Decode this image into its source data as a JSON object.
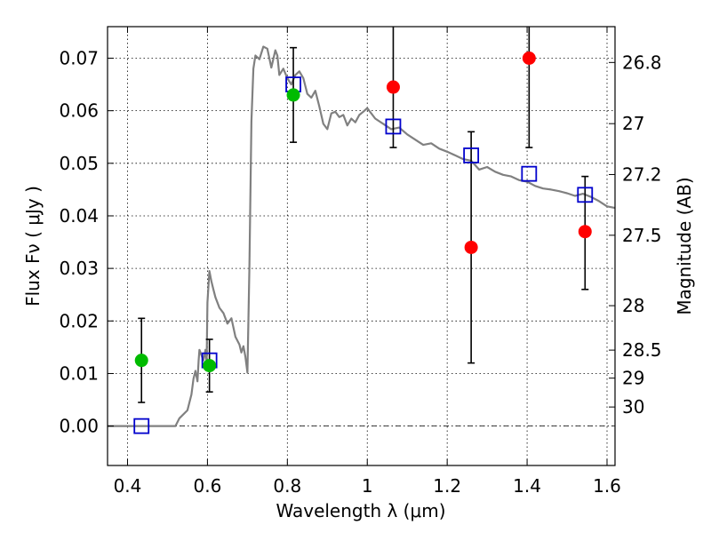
{
  "chart_data": {
    "type": "scatter",
    "xlabel": "Wavelength  λ (μm)",
    "ylabel": "Flux  Fν  ( μJy )",
    "ylabel_right": "Magnitude (AB)",
    "xlim": [
      0.35,
      1.62
    ],
    "ylim": [
      -0.0075,
      0.076
    ],
    "grid": true,
    "x_ticks": [
      {
        "value": 0.4,
        "label": "0.4"
      },
      {
        "value": 0.6,
        "label": "0.6"
      },
      {
        "value": 0.8,
        "label": "0.8"
      },
      {
        "value": 1.0,
        "label": "1"
      },
      {
        "value": 1.2,
        "label": "1.2"
      },
      {
        "value": 1.4,
        "label": "1.4"
      },
      {
        "value": 1.6,
        "label": "1.6"
      }
    ],
    "y_ticks": [
      {
        "value": 0.0,
        "label": "0.00"
      },
      {
        "value": 0.01,
        "label": "0.01"
      },
      {
        "value": 0.02,
        "label": "0.02"
      },
      {
        "value": 0.03,
        "label": "0.03"
      },
      {
        "value": 0.04,
        "label": "0.04"
      },
      {
        "value": 0.05,
        "label": "0.05"
      },
      {
        "value": 0.06,
        "label": "0.06"
      },
      {
        "value": 0.07,
        "label": "0.07"
      }
    ],
    "right_ticks": [
      {
        "mag": 26.8,
        "label": "26.8"
      },
      {
        "mag": 27.0,
        "label": "27"
      },
      {
        "mag": 27.2,
        "label": "27.2"
      },
      {
        "mag": 27.5,
        "label": "27.5"
      },
      {
        "mag": 28.0,
        "label": "28"
      },
      {
        "mag": 28.5,
        "label": "28.5"
      },
      {
        "mag": 29.0,
        "label": "29"
      },
      {
        "mag": 30.0,
        "label": "30"
      }
    ],
    "model_spectrum": {
      "color": "#808080",
      "x": [
        0.35,
        0.52,
        0.53,
        0.55,
        0.56,
        0.565,
        0.57,
        0.575,
        0.578,
        0.58,
        0.585,
        0.59,
        0.595,
        0.598,
        0.6,
        0.605,
        0.61,
        0.615,
        0.62,
        0.63,
        0.64,
        0.65,
        0.66,
        0.67,
        0.68,
        0.685,
        0.69,
        0.695,
        0.7,
        0.705,
        0.71,
        0.715,
        0.72,
        0.73,
        0.74,
        0.75,
        0.76,
        0.77,
        0.775,
        0.78,
        0.79,
        0.8,
        0.81,
        0.82,
        0.83,
        0.84,
        0.85,
        0.86,
        0.87,
        0.88,
        0.89,
        0.9,
        0.91,
        0.92,
        0.93,
        0.94,
        0.95,
        0.96,
        0.97,
        0.98,
        0.99,
        1.0,
        1.02,
        1.04,
        1.06,
        1.08,
        1.1,
        1.12,
        1.14,
        1.16,
        1.18,
        1.2,
        1.22,
        1.24,
        1.26,
        1.28,
        1.3,
        1.32,
        1.34,
        1.36,
        1.38,
        1.4,
        1.42,
        1.44,
        1.46,
        1.48,
        1.5,
        1.52,
        1.54,
        1.56,
        1.58,
        1.6,
        1.62
      ],
      "y": [
        0.0,
        0.0,
        0.0015,
        0.003,
        0.006,
        0.009,
        0.0105,
        0.0085,
        0.0125,
        0.0145,
        0.0135,
        0.0125,
        0.0145,
        0.012,
        0.0235,
        0.0295,
        0.0275,
        0.026,
        0.0245,
        0.0225,
        0.0215,
        0.0195,
        0.0205,
        0.017,
        0.0155,
        0.014,
        0.0152,
        0.0132,
        0.0102,
        0.03,
        0.058,
        0.068,
        0.0705,
        0.0698,
        0.0722,
        0.0718,
        0.0682,
        0.0715,
        0.0705,
        0.0668,
        0.068,
        0.0662,
        0.065,
        0.0668,
        0.0675,
        0.0662,
        0.0632,
        0.0625,
        0.0638,
        0.0608,
        0.0575,
        0.0565,
        0.0595,
        0.0598,
        0.0588,
        0.0592,
        0.0572,
        0.0585,
        0.0578,
        0.0592,
        0.0598,
        0.0605,
        0.0585,
        0.0575,
        0.0565,
        0.0568,
        0.0555,
        0.0545,
        0.0535,
        0.0538,
        0.0528,
        0.0522,
        0.0515,
        0.0508,
        0.0505,
        0.0488,
        0.0493,
        0.0484,
        0.0478,
        0.0475,
        0.0468,
        0.0465,
        0.0457,
        0.0452,
        0.045,
        0.0447,
        0.0443,
        0.0438,
        0.0442,
        0.0436,
        0.0428,
        0.0418,
        0.0415
      ]
    },
    "series": [
      {
        "name": "",
        "marker": "open-square",
        "color": "#0000cc",
        "points": [
          {
            "x": 0.435,
            "y": 0.0
          },
          {
            "x": 0.605,
            "y": 0.0125
          },
          {
            "x": 0.815,
            "y": 0.065
          },
          {
            "x": 1.065,
            "y": 0.057
          },
          {
            "x": 1.26,
            "y": 0.0515
          },
          {
            "x": 1.405,
            "y": 0.048
          },
          {
            "x": 1.545,
            "y": 0.044
          }
        ]
      },
      {
        "name": "",
        "marker": "filled-circle",
        "color": "#00bb00",
        "points": [
          {
            "x": 0.435,
            "y": 0.0125,
            "err_low": 0.0045,
            "err_high": 0.0205
          },
          {
            "x": 0.605,
            "y": 0.0115,
            "err_low": 0.0065,
            "err_high": 0.0165
          },
          {
            "x": 0.815,
            "y": 0.063,
            "err_low": 0.054,
            "err_high": 0.072
          }
        ]
      },
      {
        "name": "",
        "marker": "filled-circle",
        "color": "#ff0000",
        "points": [
          {
            "x": 1.065,
            "y": 0.0645,
            "err_low": 0.053,
            "err_high": 0.076
          },
          {
            "x": 1.26,
            "y": 0.034,
            "err_low": 0.012,
            "err_high": 0.056
          },
          {
            "x": 1.405,
            "y": 0.07,
            "err_low": 0.053,
            "err_high": 0.076
          },
          {
            "x": 1.545,
            "y": 0.037,
            "err_low": 0.026,
            "err_high": 0.0475
          }
        ]
      }
    ]
  }
}
